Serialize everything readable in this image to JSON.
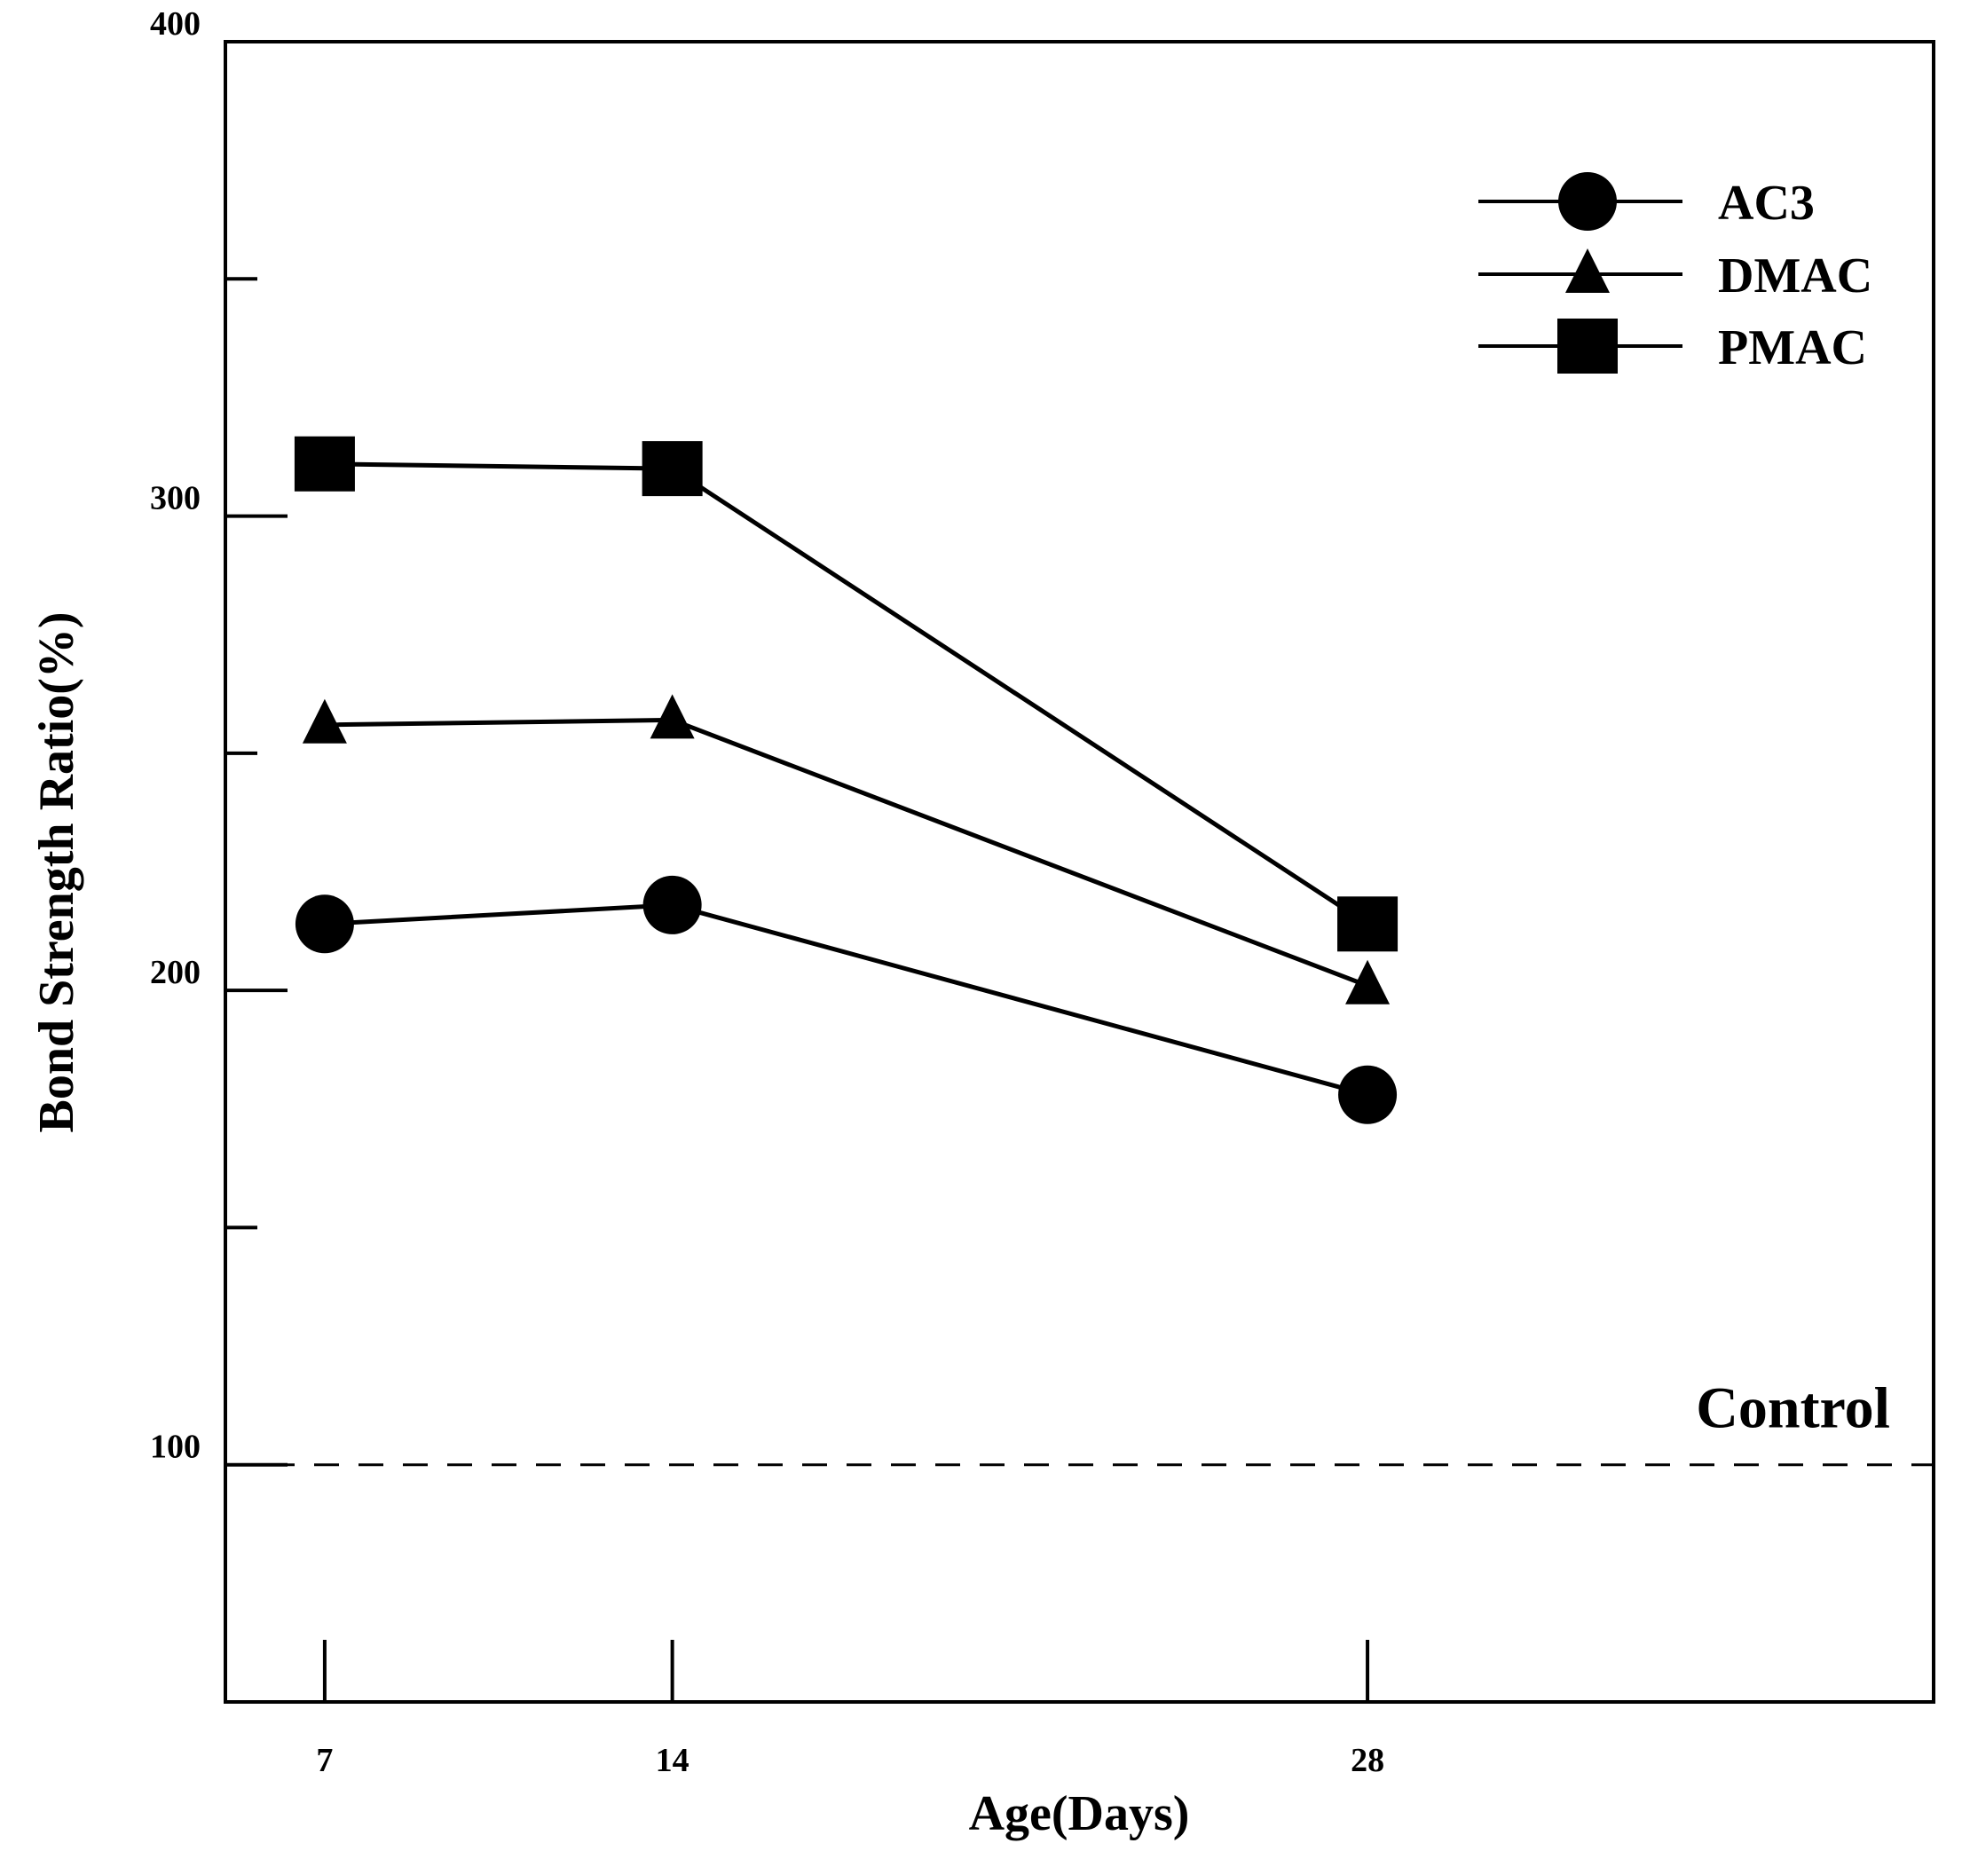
{
  "chart_data": {
    "type": "line",
    "title": "",
    "xlabel": "Age(Days)",
    "ylabel": "Bond Strength Ratio(%)",
    "x": [
      7,
      14,
      28
    ],
    "x_tick_labels": [
      "7",
      "14",
      "28"
    ],
    "xlim": [
      5,
      39.4
    ],
    "ylim": [
      50,
      400
    ],
    "y_major_ticks": [
      100,
      200,
      300,
      400
    ],
    "y_minor_ticks": [
      150,
      250,
      350
    ],
    "y_tick_labels": [
      "100",
      "200",
      "300",
      "400"
    ],
    "grid": false,
    "legend_position": "top-right",
    "series": [
      {
        "name": "AC3",
        "marker": "circle",
        "values": [
          214,
          218,
          178
        ]
      },
      {
        "name": "DMAC",
        "marker": "triangle",
        "values": [
          256,
          257,
          201
        ]
      },
      {
        "name": "PMAC",
        "marker": "square",
        "values": [
          311,
          310,
          214
        ]
      }
    ],
    "reference_line": {
      "label": "Control",
      "value": 100,
      "style": "dashed"
    }
  }
}
